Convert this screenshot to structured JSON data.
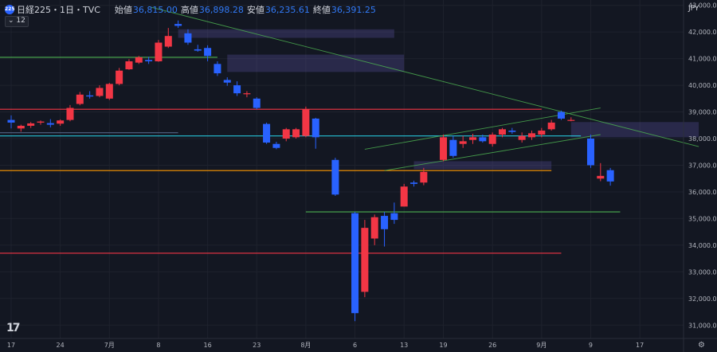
{
  "header": {
    "badge": "225",
    "symbol": "日経225・1日・TVC",
    "open_label": "始値",
    "open": "36,815.00",
    "high_label": "高値",
    "high": "36,898.28",
    "low_label": "安値",
    "low": "36,235.61",
    "close_label": "終値",
    "close": "36,391.25"
  },
  "indicator_badge": "12",
  "currency": "JPY",
  "logo_text": "17",
  "icons": {
    "settings": "gear-icon",
    "logo": "tradingview-logo-icon"
  },
  "colors": {
    "up": "#f23645",
    "down": "#2962ff",
    "background": "#131722",
    "grid": "#1e222d"
  },
  "chart_data": {
    "type": "candlestick",
    "y_axis": {
      "range": [
        30500,
        43200
      ],
      "tick_values": [
        31000,
        32000,
        33000,
        34000,
        35000,
        36000,
        37000,
        38000,
        39000,
        40000,
        41000,
        42000,
        43000
      ],
      "tick_labels": [
        "31,000.00",
        "32,000.00",
        "33,000.00",
        "34,000.00",
        "35,000.00",
        "36,000.00",
        "37,000.00",
        "38,000.00",
        "39,000.00",
        "40,000.00",
        "41,000.00",
        "42,000.00",
        "43,000.00"
      ]
    },
    "x_axis": {
      "tick_labels": [
        "17",
        "24",
        "7月",
        "8",
        "16",
        "23",
        "8月",
        "6",
        "13",
        "19",
        "26",
        "9月",
        "9",
        "17"
      ],
      "tick_bar_index": [
        0,
        5,
        10,
        15,
        20,
        25,
        30,
        35,
        40,
        44,
        49,
        54,
        59,
        64
      ]
    },
    "candles": [
      {
        "o": 38700,
        "h": 38870,
        "l": 38380,
        "c": 38600
      },
      {
        "o": 38380,
        "h": 38520,
        "l": 38260,
        "c": 38480
      },
      {
        "o": 38480,
        "h": 38620,
        "l": 38400,
        "c": 38570
      },
      {
        "o": 38600,
        "h": 38680,
        "l": 38520,
        "c": 38640
      },
      {
        "o": 38580,
        "h": 38730,
        "l": 38420,
        "c": 38520
      },
      {
        "o": 38560,
        "h": 38720,
        "l": 38480,
        "c": 38680
      },
      {
        "o": 38700,
        "h": 39260,
        "l": 38650,
        "c": 39150
      },
      {
        "o": 39300,
        "h": 39750,
        "l": 39250,
        "c": 39650
      },
      {
        "o": 39620,
        "h": 39780,
        "l": 39500,
        "c": 39580
      },
      {
        "o": 39600,
        "h": 40000,
        "l": 39550,
        "c": 39900
      },
      {
        "o": 39500,
        "h": 40090,
        "l": 39450,
        "c": 40050
      },
      {
        "o": 40050,
        "h": 40650,
        "l": 40000,
        "c": 40550
      },
      {
        "o": 40600,
        "h": 40980,
        "l": 40580,
        "c": 40900
      },
      {
        "o": 40850,
        "h": 41100,
        "l": 40800,
        "c": 41050
      },
      {
        "o": 40950,
        "h": 41070,
        "l": 40800,
        "c": 40900
      },
      {
        "o": 40900,
        "h": 41700,
        "l": 40880,
        "c": 41600
      },
      {
        "o": 41450,
        "h": 42150,
        "l": 41400,
        "c": 41850
      },
      {
        "o": 42300,
        "h": 42430,
        "l": 42150,
        "c": 42230
      },
      {
        "o": 41950,
        "h": 42100,
        "l": 41520,
        "c": 41600
      },
      {
        "o": 41350,
        "h": 41520,
        "l": 41260,
        "c": 41300
      },
      {
        "o": 41400,
        "h": 41500,
        "l": 40900,
        "c": 41100
      },
      {
        "o": 40800,
        "h": 40900,
        "l": 40350,
        "c": 40450
      },
      {
        "o": 40200,
        "h": 40300,
        "l": 39980,
        "c": 40100
      },
      {
        "o": 40000,
        "h": 40150,
        "l": 39600,
        "c": 39700
      },
      {
        "o": 39700,
        "h": 39780,
        "l": 39550,
        "c": 39700
      },
      {
        "o": 39500,
        "h": 39550,
        "l": 39100,
        "c": 39150
      },
      {
        "o": 38550,
        "h": 38600,
        "l": 37800,
        "c": 37850
      },
      {
        "o": 37800,
        "h": 37880,
        "l": 37600,
        "c": 37650
      },
      {
        "o": 38000,
        "h": 38400,
        "l": 37900,
        "c": 38350
      },
      {
        "o": 38050,
        "h": 38400,
        "l": 38000,
        "c": 38350
      },
      {
        "o": 38100,
        "h": 39200,
        "l": 38050,
        "c": 39100
      },
      {
        "o": 38750,
        "h": 38780,
        "l": 37620,
        "c": 38050
      },
      null,
      {
        "o": 37200,
        "h": 37280,
        "l": 35850,
        "c": 35900
      },
      null,
      {
        "o": 35200,
        "h": 35250,
        "l": 31150,
        "c": 31450
      },
      {
        "o": 32250,
        "h": 34950,
        "l": 32050,
        "c": 34650
      },
      {
        "o": 34250,
        "h": 35150,
        "l": 34000,
        "c": 35050
      },
      {
        "o": 35100,
        "h": 35250,
        "l": 33950,
        "c": 34600
      },
      {
        "o": 35200,
        "h": 35600,
        "l": 34800,
        "c": 34950
      },
      {
        "o": 35450,
        "h": 36300,
        "l": 35450,
        "c": 36200
      },
      {
        "o": 36350,
        "h": 36420,
        "l": 36200,
        "c": 36300
      },
      {
        "o": 36350,
        "h": 36900,
        "l": 36250,
        "c": 36750
      },
      null,
      {
        "o": 37200,
        "h": 38150,
        "l": 37150,
        "c": 38050
      },
      {
        "o": 37950,
        "h": 38100,
        "l": 37280,
        "c": 37350
      },
      {
        "o": 37800,
        "h": 38100,
        "l": 37650,
        "c": 37900
      },
      {
        "o": 37950,
        "h": 38180,
        "l": 37800,
        "c": 38050
      },
      {
        "o": 38050,
        "h": 38150,
        "l": 37850,
        "c": 37900
      },
      {
        "o": 37800,
        "h": 38230,
        "l": 37700,
        "c": 38150
      },
      {
        "o": 38150,
        "h": 38400,
        "l": 38050,
        "c": 38350
      },
      {
        "o": 38300,
        "h": 38400,
        "l": 38180,
        "c": 38250
      },
      {
        "o": 37950,
        "h": 38230,
        "l": 37850,
        "c": 38100
      },
      {
        "o": 38050,
        "h": 38300,
        "l": 37950,
        "c": 38200
      },
      {
        "o": 38150,
        "h": 38400,
        "l": 38050,
        "c": 38300
      },
      {
        "o": 38350,
        "h": 38700,
        "l": 38300,
        "c": 38600
      },
      {
        "o": 39000,
        "h": 39050,
        "l": 38700,
        "c": 38750
      },
      {
        "o": 38700,
        "h": 38800,
        "l": 38650,
        "c": 38700
      },
      null,
      {
        "o": 38000,
        "h": 38150,
        "l": 36900,
        "c": 37000
      },
      {
        "o": 36500,
        "h": 37080,
        "l": 36400,
        "c": 36600
      },
      {
        "o": 36815,
        "h": 36898,
        "l": 36235,
        "c": 36391
      }
    ],
    "horizontal_lines": [
      {
        "y": 41050,
        "color": "#4caf50",
        "x_start": 0,
        "x_end": 21
      },
      {
        "y": 39100,
        "color": "#f23645",
        "x_start": 0,
        "x_end": 54
      },
      {
        "y": 38100,
        "color": "#26c6da",
        "x_start": 0,
        "x_end": 58
      },
      {
        "y": 38220,
        "color": "#4a5a7a",
        "x_start": 0,
        "x_end": 17
      },
      {
        "y": 36800,
        "color": "#ff9800",
        "x_start": 0,
        "x_end": 55
      },
      {
        "y": 35250,
        "color": "#4caf50",
        "x_start": 30,
        "x_end": 62
      },
      {
        "y": 33700,
        "color": "#f23645",
        "x_start": 0,
        "x_end": 56
      }
    ],
    "trend_lines": [
      {
        "x1": 14,
        "y1": 42950,
        "x2": 70,
        "y2": 37700,
        "color": "#4caf50"
      },
      {
        "x1": 36,
        "y1": 37600,
        "x2": 60,
        "y2": 39150,
        "color": "#4caf50"
      },
      {
        "x1": 38,
        "y1": 36800,
        "x2": 60,
        "y2": 38150,
        "color": "#4caf50"
      }
    ],
    "zones": [
      {
        "x1": 17,
        "x2": 39,
        "y_low": 41780,
        "y_high": 42100
      },
      {
        "x1": 22,
        "x2": 40,
        "y_low": 40500,
        "y_high": 41150
      },
      {
        "x1": 41,
        "x2": 55,
        "y_low": 36850,
        "y_high": 37150
      },
      {
        "x1": 57,
        "x2": 70,
        "y_low": 38050,
        "y_high": 38620
      }
    ]
  }
}
